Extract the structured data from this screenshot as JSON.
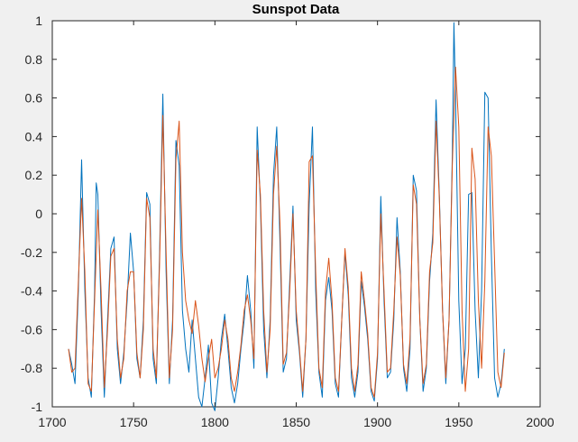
{
  "chart_data": {
    "type": "line",
    "title": "Sunspot Data",
    "xlabel": "",
    "ylabel": "",
    "xlim": [
      1700,
      2000
    ],
    "ylim": [
      -1,
      1
    ],
    "x_ticks": [
      "1700",
      "1750",
      "1800",
      "1850",
      "1900",
      "1950",
      "2000"
    ],
    "y_ticks": [
      "-1",
      "-0.8",
      "-0.6",
      "-0.4",
      "-0.2",
      "0",
      "0.2",
      "0.4",
      "0.6",
      "0.8",
      "1"
    ],
    "x_tick_values": [
      1700,
      1750,
      1800,
      1850,
      1900,
      1950,
      2000
    ],
    "y_tick_values": [
      -1,
      -0.8,
      -0.6,
      -0.4,
      -0.2,
      0,
      0.2,
      0.4,
      0.6,
      0.8,
      1
    ],
    "grid": false,
    "legend": "none",
    "background_color": "#f0f0f0",
    "axes_color": "#ffffff",
    "series": [
      {
        "color": "#0072bd",
        "x": [
          1710,
          1712,
          1714,
          1716,
          1718,
          1720,
          1722,
          1724,
          1726,
          1727,
          1728,
          1730,
          1732,
          1734,
          1736,
          1738,
          1740,
          1742,
          1744,
          1746,
          1748,
          1750,
          1752,
          1754,
          1756,
          1758,
          1760,
          1762,
          1764,
          1766,
          1768,
          1770,
          1772,
          1774,
          1776,
          1778,
          1780,
          1782,
          1784,
          1786,
          1788,
          1790,
          1792,
          1794,
          1796,
          1798,
          1800,
          1802,
          1804,
          1806,
          1808,
          1810,
          1812,
          1814,
          1816,
          1818,
          1820,
          1822,
          1824,
          1826,
          1828,
          1830,
          1832,
          1834,
          1836,
          1838,
          1840,
          1842,
          1844,
          1846,
          1848,
          1850,
          1852,
          1854,
          1856,
          1858,
          1860,
          1862,
          1864,
          1866,
          1868,
          1870,
          1872,
          1874,
          1876,
          1878,
          1880,
          1882,
          1884,
          1886,
          1888,
          1890,
          1892,
          1894,
          1896,
          1898,
          1900,
          1902,
          1904,
          1906,
          1908,
          1910,
          1912,
          1914,
          1916,
          1918,
          1920,
          1922,
          1924,
          1926,
          1928,
          1930,
          1932,
          1934,
          1936,
          1938,
          1940,
          1942,
          1944,
          1946,
          1947,
          1948,
          1950,
          1952,
          1954,
          1956,
          1958,
          1960,
          1962,
          1964,
          1966,
          1968,
          1970,
          1972,
          1974,
          1976,
          1978
        ],
        "y": [
          -0.7,
          -0.78,
          -0.88,
          -0.4,
          0.28,
          -0.4,
          -0.85,
          -0.95,
          -0.4,
          0.16,
          0.1,
          -0.5,
          -0.95,
          -0.55,
          -0.18,
          -0.12,
          -0.7,
          -0.88,
          -0.72,
          -0.45,
          -0.1,
          -0.3,
          -0.75,
          -0.85,
          -0.55,
          0.11,
          0.05,
          -0.75,
          -0.88,
          -0.2,
          0.62,
          -0.3,
          -0.88,
          -0.55,
          0.38,
          0.25,
          -0.5,
          -0.7,
          -0.82,
          -0.55,
          -0.75,
          -0.95,
          -1.0,
          -0.85,
          -0.68,
          -0.98,
          -1.02,
          -0.85,
          -0.65,
          -0.52,
          -0.7,
          -0.9,
          -0.98,
          -0.88,
          -0.7,
          -0.55,
          -0.32,
          -0.5,
          -0.8,
          0.45,
          0.05,
          -0.6,
          -0.85,
          -0.55,
          0.2,
          0.45,
          -0.15,
          -0.82,
          -0.75,
          -0.35,
          0.04,
          -0.55,
          -0.72,
          -0.95,
          -0.65,
          0.05,
          0.45,
          -0.4,
          -0.82,
          -0.95,
          -0.45,
          -0.33,
          -0.5,
          -0.88,
          -0.95,
          -0.55,
          -0.2,
          -0.42,
          -0.85,
          -0.95,
          -0.82,
          -0.35,
          -0.48,
          -0.65,
          -0.92,
          -0.97,
          -0.75,
          0.09,
          -0.45,
          -0.85,
          -0.82,
          -0.55,
          -0.02,
          -0.3,
          -0.8,
          -0.92,
          -0.7,
          0.2,
          0.12,
          -0.55,
          -0.92,
          -0.8,
          -0.35,
          -0.1,
          0.59,
          0.1,
          -0.5,
          -0.88,
          -0.55,
          0.3,
          0.99,
          0.6,
          -0.45,
          -0.88,
          -0.7,
          0.1,
          0.11,
          -0.5,
          -0.85,
          -0.4,
          0.63,
          0.6,
          -0.2,
          -0.85,
          -0.95,
          -0.88,
          -0.7
        ]
      },
      {
        "color": "#d95319",
        "x": [
          1710,
          1712,
          1714,
          1716,
          1718,
          1720,
          1722,
          1724,
          1726,
          1728,
          1730,
          1732,
          1734,
          1736,
          1738,
          1740,
          1742,
          1744,
          1746,
          1748,
          1750,
          1752,
          1754,
          1756,
          1758,
          1760,
          1762,
          1764,
          1766,
          1768,
          1770,
          1772,
          1774,
          1776,
          1778,
          1780,
          1782,
          1784,
          1786,
          1788,
          1790,
          1792,
          1794,
          1796,
          1798,
          1800,
          1802,
          1804,
          1806,
          1808,
          1810,
          1812,
          1814,
          1816,
          1818,
          1820,
          1822,
          1824,
          1826,
          1828,
          1830,
          1832,
          1834,
          1836,
          1838,
          1840,
          1842,
          1844,
          1846,
          1848,
          1850,
          1852,
          1854,
          1856,
          1858,
          1860,
          1862,
          1864,
          1866,
          1868,
          1870,
          1872,
          1874,
          1876,
          1878,
          1880,
          1882,
          1884,
          1886,
          1888,
          1890,
          1892,
          1894,
          1896,
          1898,
          1900,
          1902,
          1904,
          1906,
          1908,
          1910,
          1912,
          1914,
          1916,
          1918,
          1920,
          1922,
          1924,
          1926,
          1928,
          1930,
          1932,
          1934,
          1936,
          1938,
          1940,
          1942,
          1944,
          1946,
          1948,
          1950,
          1952,
          1954,
          1956,
          1958,
          1960,
          1962,
          1964,
          1966,
          1968,
          1970,
          1972,
          1974,
          1976,
          1978
        ],
        "y": [
          -0.7,
          -0.82,
          -0.8,
          -0.35,
          0.08,
          -0.3,
          -0.88,
          -0.92,
          -0.45,
          0.02,
          -0.4,
          -0.9,
          -0.6,
          -0.22,
          -0.18,
          -0.65,
          -0.85,
          -0.75,
          -0.4,
          -0.3,
          -0.3,
          -0.72,
          -0.85,
          -0.6,
          0.08,
          -0.02,
          -0.7,
          -0.85,
          -0.25,
          0.51,
          -0.2,
          -0.85,
          -0.6,
          0.28,
          0.48,
          -0.2,
          -0.45,
          -0.55,
          -0.62,
          -0.45,
          -0.58,
          -0.75,
          -0.87,
          -0.75,
          -0.65,
          -0.85,
          -0.8,
          -0.7,
          -0.55,
          -0.65,
          -0.85,
          -0.92,
          -0.82,
          -0.68,
          -0.5,
          -0.42,
          -0.55,
          -0.75,
          0.33,
          0.1,
          -0.5,
          -0.82,
          -0.6,
          0.1,
          0.35,
          -0.05,
          -0.78,
          -0.72,
          -0.4,
          0.0,
          -0.5,
          -0.7,
          -0.92,
          -0.65,
          0.27,
          0.3,
          -0.3,
          -0.8,
          -0.9,
          -0.4,
          -0.23,
          -0.45,
          -0.85,
          -0.92,
          -0.55,
          -0.18,
          -0.38,
          -0.8,
          -0.92,
          -0.78,
          -0.3,
          -0.45,
          -0.62,
          -0.9,
          -0.95,
          -0.72,
          0.0,
          -0.4,
          -0.82,
          -0.8,
          -0.5,
          -0.12,
          -0.32,
          -0.78,
          -0.88,
          -0.65,
          0.15,
          0.05,
          -0.55,
          -0.88,
          -0.78,
          -0.3,
          -0.15,
          0.48,
          0.08,
          -0.5,
          -0.85,
          -0.55,
          0.25,
          0.76,
          0.45,
          -0.5,
          -0.92,
          -0.7,
          0.34,
          0.18,
          -0.45,
          -0.8,
          -0.35,
          0.45,
          0.3,
          -0.25,
          -0.82,
          -0.9,
          -0.72
        ]
      }
    ]
  }
}
